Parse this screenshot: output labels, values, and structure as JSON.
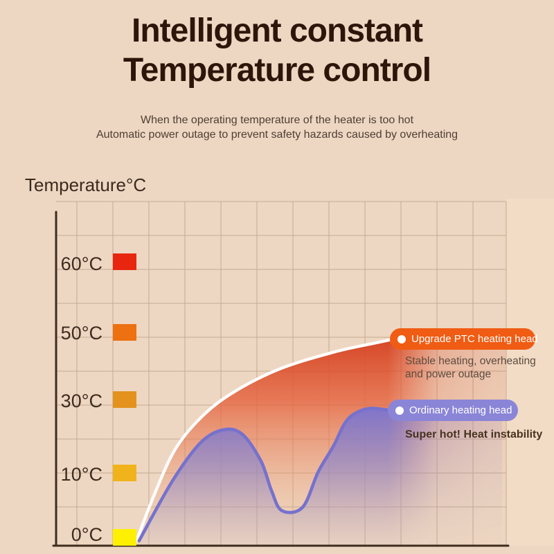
{
  "page": {
    "background_color": "#eed7c2",
    "right_band_color": "#f5e1ca"
  },
  "header": {
    "title_line1": "Intelligent constant",
    "title_line2": "Temperature control",
    "subtitle_line1": "When the operating temperature of the heater is too hot",
    "subtitle_line2": "Automatic power outage to prevent safety hazards caused by overheating"
  },
  "chart": {
    "axis_title": "Temperature°C",
    "grid_color": "#a18569",
    "axis_color": "#3e2c1e"
  },
  "legend": {
    "ptc": {
      "label": "Upgrade PTC heating head",
      "pill_color": "#f05c13",
      "note_line1": "Stable heating, overheating",
      "note_line2": "and power outage"
    },
    "ordinary": {
      "label": "Ordinary heating head",
      "pill_color": "#8b85d7",
      "note": "Super hot! Heat instability"
    }
  },
  "chart_data": {
    "type": "area",
    "title": "Temperature°C",
    "grid": true,
    "legend_position": "right-inline",
    "y_axis": {
      "label": "Temperature°C",
      "ticks": [
        {
          "label": "60°C",
          "value": 60,
          "swatch_color": "#e8260f"
        },
        {
          "label": "50°C",
          "value": 50,
          "swatch_color": "#ed7011"
        },
        {
          "label": "30°C",
          "value": 30,
          "swatch_color": "#e2921d"
        },
        {
          "label": "10°C",
          "value": 10,
          "swatch_color": "#f0b31b"
        },
        {
          "label": "0°C",
          "value": 0,
          "swatch_color": "#fdf000"
        }
      ]
    },
    "x_axis": {
      "label": "",
      "ticks": []
    },
    "series": [
      {
        "name": "Upgrade PTC heating head",
        "line_color": "#ffffff",
        "fill_top_color": "#d43f1e",
        "behavior": "Stable heating, overheating and power outage",
        "points_pct_temp": [
          [
            0,
            0
          ],
          [
            7,
            7
          ],
          [
            15,
            17
          ],
          [
            25,
            26
          ],
          [
            37,
            33
          ],
          [
            55,
            40
          ],
          [
            76,
            45
          ],
          [
            92,
            47.7
          ],
          [
            100,
            49
          ]
        ]
      },
      {
        "name": "Ordinary heating head",
        "line_color": "#7671cd",
        "fill_top_color": "#7b75d1",
        "behavior": "Super hot! Heat instability",
        "points_pct_temp": [
          [
            1,
            0
          ],
          [
            14,
            9
          ],
          [
            25,
            19
          ],
          [
            34,
            22.5
          ],
          [
            41,
            21
          ],
          [
            48,
            13.5
          ],
          [
            52,
            7.5
          ],
          [
            56,
            4.5
          ],
          [
            64,
            5
          ],
          [
            70,
            10.5
          ],
          [
            76,
            18
          ],
          [
            80,
            24
          ],
          [
            84,
            27
          ],
          [
            90,
            28.5
          ],
          [
            97,
            28
          ]
        ]
      }
    ]
  }
}
